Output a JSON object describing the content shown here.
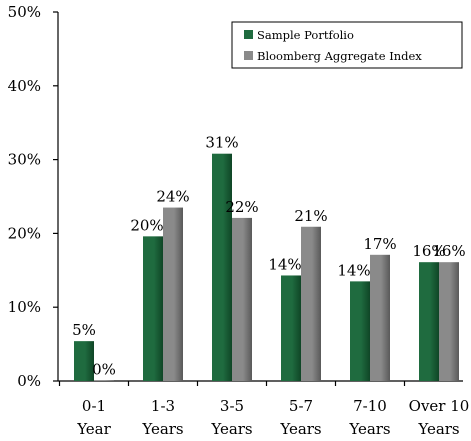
{
  "chart_data": {
    "type": "bar",
    "categories": [
      [
        "0-1",
        "Year"
      ],
      [
        "1-3",
        "Years"
      ],
      [
        "3-5",
        "Years"
      ],
      [
        "5-7",
        "Years"
      ],
      [
        "7-10",
        "Years"
      ],
      [
        "Over 10",
        "Years"
      ]
    ],
    "series": [
      {
        "name": "Sample Portfolio",
        "values": [
          5.4,
          19.6,
          30.8,
          14.3,
          13.5,
          16.1
        ],
        "labels": [
          "5%",
          "20%",
          "31%",
          "14%",
          "14%",
          "16%"
        ]
      },
      {
        "name": "Bloomberg Aggregate Index",
        "values": [
          0.1,
          23.5,
          22.1,
          20.9,
          17.1,
          16.1
        ],
        "labels": [
          "0%",
          "24%",
          "22%",
          "21%",
          "17%",
          "16%"
        ]
      }
    ],
    "ylim": [
      0,
      50
    ],
    "yticks": [
      0,
      10,
      20,
      30,
      40,
      50
    ],
    "ytick_labels": [
      "0%",
      "10%",
      "20%",
      "30%",
      "40%",
      "50%"
    ],
    "legend_position": "top-right",
    "grid": false,
    "colors": {
      "series_0_base": "#1f6b3f",
      "series_0_dark": "#0f4526",
      "series_1_base": "#8a8a8a",
      "series_1_dark": "#595959",
      "axis": "#000000"
    }
  }
}
